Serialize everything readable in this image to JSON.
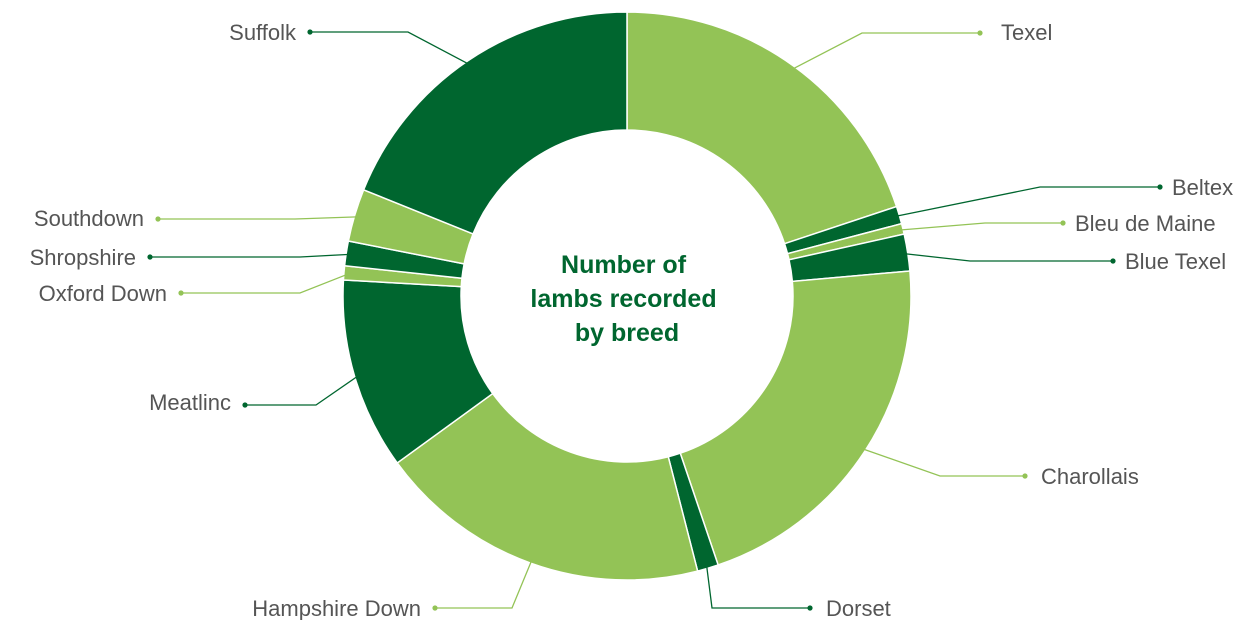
{
  "chart_data": {
    "type": "pie",
    "title": "Number of lambs recorded by breed",
    "title_lines": [
      "Number of",
      "lambs recorded",
      "by breed"
    ],
    "donut": true,
    "colors": {
      "dark": "#00662f",
      "light": "#93c356"
    },
    "slices": [
      {
        "label": "Texel",
        "value": 19.9,
        "color": "light"
      },
      {
        "label": "Beltex",
        "value": 1.0,
        "color": "dark"
      },
      {
        "label": "Bleu de Maine",
        "value": 0.6,
        "color": "light"
      },
      {
        "label": "Blue Texel",
        "value": 2.1,
        "color": "dark"
      },
      {
        "label": "Charollais",
        "value": 21.2,
        "color": "light"
      },
      {
        "label": "Dorset",
        "value": 1.2,
        "color": "dark"
      },
      {
        "label": "Hampshire Down",
        "value": 19.0,
        "color": "light"
      },
      {
        "label": "Meatlinc",
        "value": 10.9,
        "color": "dark"
      },
      {
        "label": "Oxford Down",
        "value": 0.8,
        "color": "light"
      },
      {
        "label": "Shropshire",
        "value": 1.4,
        "color": "dark"
      },
      {
        "label": "Southdown",
        "value": 3.0,
        "color": "light"
      },
      {
        "label": "Suffolk",
        "value": 18.9,
        "color": "dark"
      }
    ]
  }
}
